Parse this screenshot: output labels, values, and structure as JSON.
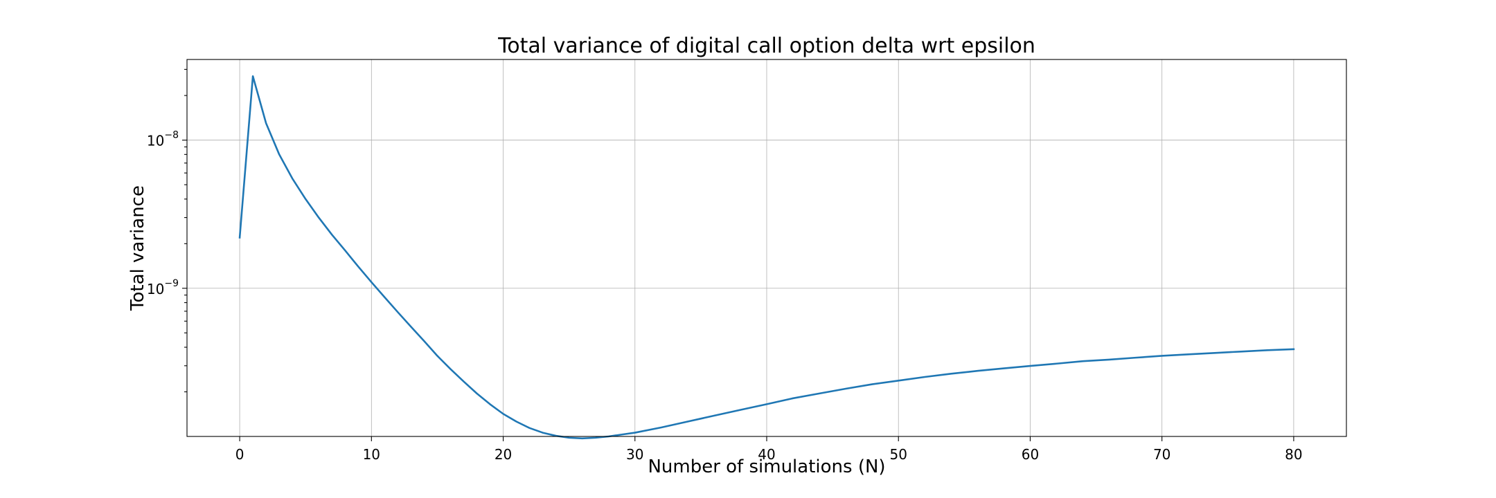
{
  "chart_data": {
    "type": "line",
    "title": "Total variance of digital call option delta wrt epsilon",
    "xlabel": "Number of simulations (N)",
    "ylabel": "Total variance",
    "yscale": "log",
    "grid": true,
    "xlim": [
      -4,
      84
    ],
    "ylim": [
      1e-10,
      3.5e-08
    ],
    "xticks": [
      0,
      10,
      20,
      30,
      40,
      50,
      60,
      70,
      80
    ],
    "yticks": [
      {
        "value": 1e-09,
        "base": "10",
        "exponent": "−9"
      },
      {
        "value": 1e-08,
        "base": "10",
        "exponent": "−8"
      }
    ],
    "series": [
      {
        "color": "#1f77b4",
        "x": [
          0,
          1,
          2,
          3,
          4,
          5,
          6,
          7,
          8,
          9,
          10,
          11,
          12,
          13,
          14,
          15,
          16,
          17,
          18,
          19,
          20,
          21,
          22,
          23,
          24,
          25,
          26,
          27,
          28,
          29,
          30,
          32,
          34,
          36,
          38,
          40,
          42,
          44,
          46,
          48,
          50,
          52,
          54,
          56,
          58,
          60,
          62,
          64,
          66,
          68,
          70,
          72,
          74,
          76,
          78,
          80
        ],
        "y": [
          2.2e-09,
          2.7e-08,
          1.3e-08,
          8e-09,
          5.5e-09,
          4e-09,
          3e-09,
          2.3e-09,
          1.8e-09,
          1.4e-09,
          1.1e-09,
          8.7e-10,
          6.9e-10,
          5.5e-10,
          4.4e-10,
          3.5e-10,
          2.85e-10,
          2.35e-10,
          1.95e-10,
          1.65e-10,
          1.42e-10,
          1.26e-10,
          1.14e-10,
          1.06e-10,
          1.01e-10,
          9.8e-11,
          9.7e-11,
          9.8e-11,
          1e-10,
          1.03e-10,
          1.06e-10,
          1.15e-10,
          1.26e-10,
          1.38e-10,
          1.51e-10,
          1.65e-10,
          1.81e-10,
          1.95e-10,
          2.1e-10,
          2.25e-10,
          2.38e-10,
          2.52e-10,
          2.65e-10,
          2.77e-10,
          2.88e-10,
          2.99e-10,
          3.1e-10,
          3.22e-10,
          3.3e-10,
          3.4e-10,
          3.5e-10,
          3.58e-10,
          3.66e-10,
          3.74e-10,
          3.82e-10,
          3.88e-10
        ]
      }
    ]
  }
}
